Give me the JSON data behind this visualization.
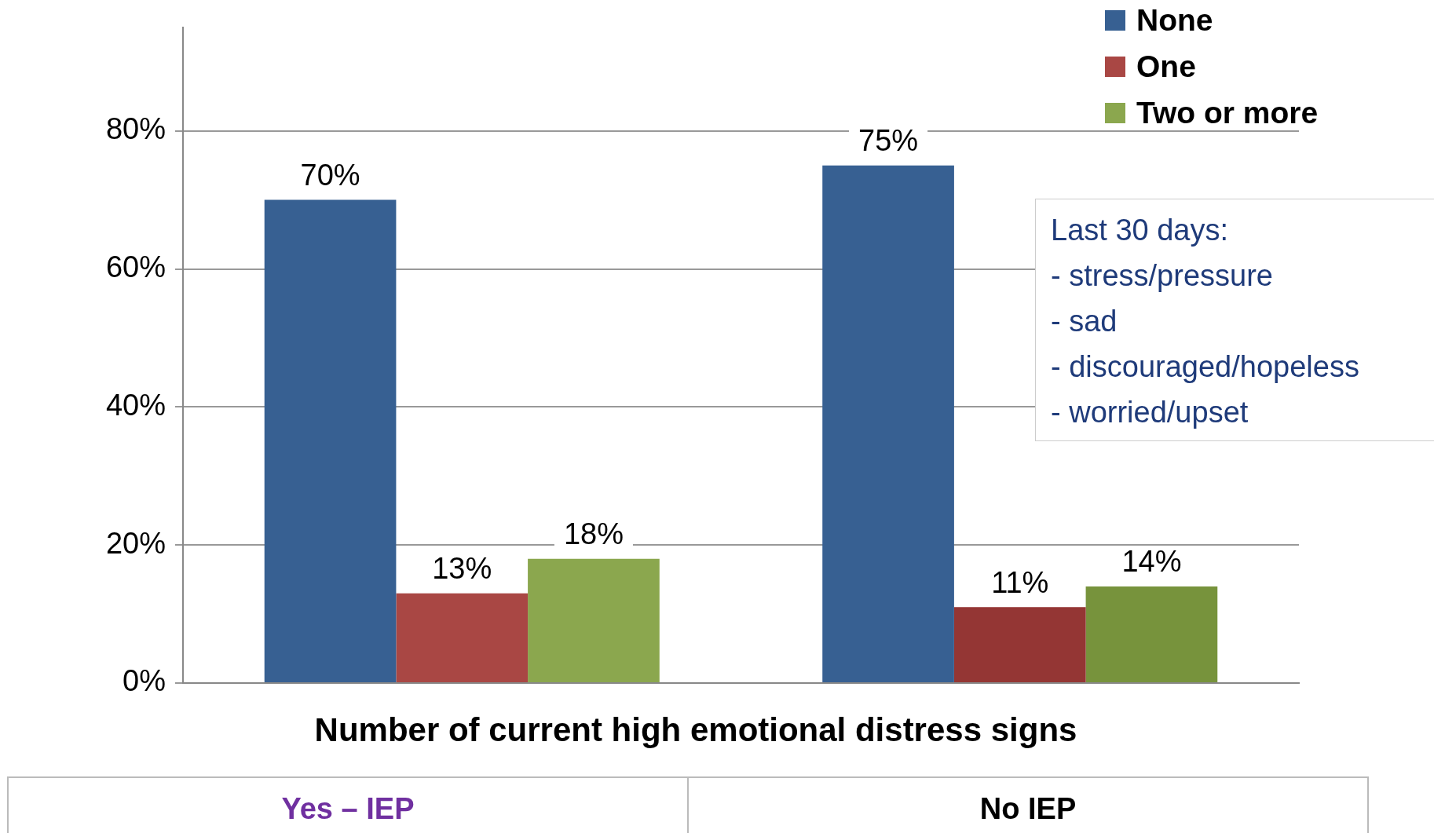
{
  "chart_data": {
    "type": "bar",
    "xlabel": "Number of current high emotional distress signs",
    "categories": [
      "Yes  – IEP",
      "No IEP"
    ],
    "series": [
      {
        "name": "None",
        "color": "#376092",
        "colors": [
          "#376092",
          "#376092"
        ],
        "values": [
          70,
          75
        ],
        "value_labels": [
          "70%",
          "75%"
        ]
      },
      {
        "name": "One",
        "color": "#a94744",
        "colors": [
          "#a94744",
          "#943634"
        ],
        "values": [
          13,
          11
        ],
        "value_labels": [
          "13%",
          "11%"
        ]
      },
      {
        "name": "Two or more",
        "color": "#8ba74e",
        "colors": [
          "#8ba74e",
          "#77933c"
        ],
        "values": [
          18,
          14
        ],
        "value_labels": [
          "18%",
          "14%"
        ]
      }
    ],
    "ylim": [
      0,
      95
    ],
    "yticks": [
      {
        "value": 0,
        "label": "0%"
      },
      {
        "value": 20,
        "label": "20%"
      },
      {
        "value": 40,
        "label": "40%"
      },
      {
        "value": 60,
        "label": "60%"
      },
      {
        "value": 80,
        "label": "80%"
      }
    ],
    "grid": "y",
    "legend": "top right",
    "annotations": [
      "Last 30 days:\n- stress/pressure\n- sad\n- discouraged/hopeless\n- worried/upset"
    ]
  }
}
